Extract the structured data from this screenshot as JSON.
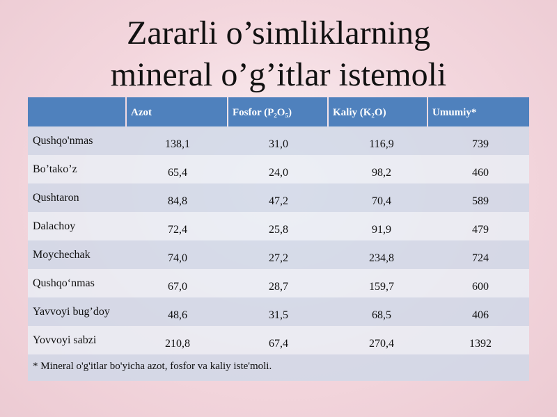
{
  "title": [
    "Zararli o’simliklarning",
    "mineral o’g’itlar istemoli"
  ],
  "table": {
    "header": [
      "",
      "Azot",
      "Fosfor (P₂O₅)",
      "Kaliy (K₂O)",
      "Umumiy*"
    ],
    "rows": [
      [
        "Qushqo'nmas",
        "138,1",
        "31,0",
        "116,9",
        "739"
      ],
      [
        "Bo’tako’z",
        "65,4",
        "24,0",
        "98,2",
        "460"
      ],
      [
        "Qushtaron",
        "84,8",
        "47,2",
        "70,4",
        "589"
      ],
      [
        "Dalachoy",
        "72,4",
        "25,8",
        "91,9",
        "479"
      ],
      [
        "Moychechak",
        "74,0",
        "27,2",
        "234,8",
        "724"
      ],
      [
        "Qushqo‘nmas",
        "67,0",
        "28,7",
        "159,7",
        "600"
      ],
      [
        "Yavvoyi bug’doy",
        "48,6",
        "31,5",
        "68,5",
        "406"
      ],
      [
        "Yovvoyi sabzi",
        "210,8",
        "67,4",
        "270,4",
        "1392"
      ]
    ],
    "footnote": "* Mineral o'g'itlar bo'yicha azot, fosfor va kaliy iste'moli."
  }
}
